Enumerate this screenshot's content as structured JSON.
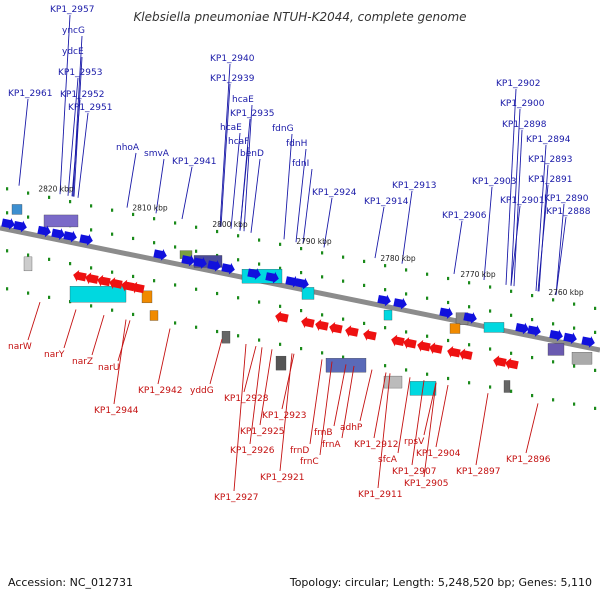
{
  "title": "Klebsiella pneumoniae NTUH-K2044, complete genome",
  "footer": {
    "accession": "Accession: NC_012731",
    "topology": "Topology: circular; Length: 5,248,520 bp; Genes: 5,110"
  },
  "scale_labels": [
    "2820 kbp",
    "2810 kbp",
    "2800 kbp",
    "2790 kbp",
    "2780 kbp",
    "2770 kbp",
    "2760 kbp"
  ],
  "forward_genes": [
    "KP1_2957",
    "yncG",
    "ydcE",
    "KP1_2953",
    "KP1_2961",
    "KP1_2952",
    "KP1_2951",
    "nhoA",
    "smvA",
    "KP1_2940",
    "KP1_2939",
    "hcaE",
    "KP1_2935",
    "hcaE",
    "hcaF",
    "KP1_2941",
    "benD",
    "fdnG",
    "fdnH",
    "fdnI",
    "KP1_2924",
    "KP1_2913",
    "KP1_2914",
    "KP1_2906",
    "KP1_2902",
    "KP1_2900",
    "KP1_2898",
    "KP1_2894",
    "KP1_2893",
    "KP1_2903",
    "KP1_2891",
    "KP1_2901",
    "KP1_2890",
    "KP1_2888"
  ],
  "reverse_genes": [
    "narW",
    "narY",
    "narZ",
    "narU",
    "KP1_2944",
    "KP1_2942",
    "yddG",
    "KP1_2928",
    "KP1_2923",
    "KP1_2925",
    "KP1_2926",
    "KP1_2927",
    "KP1_2921",
    "frnD",
    "frnC",
    "frnB",
    "frnA",
    "adhP",
    "KP1_2912",
    "sfcA",
    "rpsV",
    "KP1_2907",
    "KP1_2911",
    "KP1_2904",
    "KP1_2905",
    "KP1_2897",
    "KP1_2896"
  ],
  "colors": {
    "forward_label": "#1a1aa8",
    "reverse_label": "#c41010",
    "forward_arrow": "#1111dd",
    "reverse_arrow": "#ee1111",
    "backbone": "#8c8c8c",
    "tick": "#1a8a1a",
    "cog_bar": "#00d8e0",
    "orange": "#f08a00"
  }
}
